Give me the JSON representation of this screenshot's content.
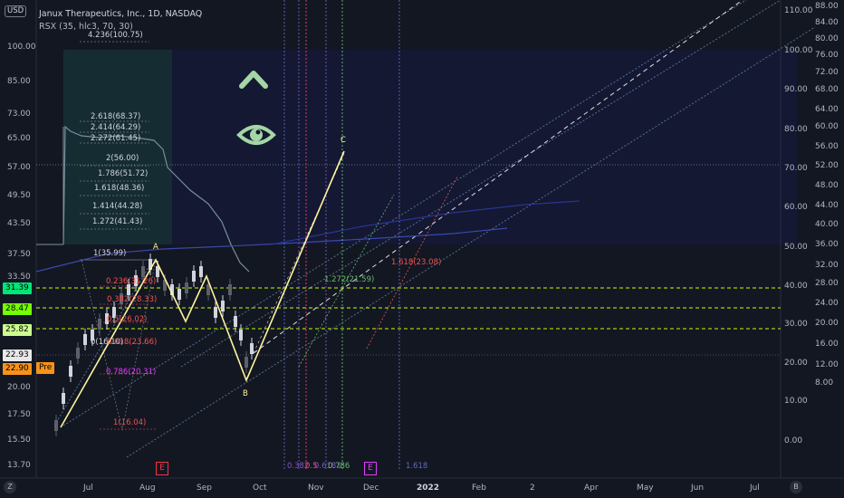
{
  "header": {
    "currency": "USD",
    "title": "Janux Therapeutics, Inc., 1D, NASDAQ",
    "indicator": "RSX (35, hlc3, 70, 30)"
  },
  "left_axis": [
    "100.00",
    "85.00",
    "73.00",
    "65.00",
    "57.00",
    "49.50",
    "43.50",
    "37.50",
    "33.50",
    "29.50",
    "20.00",
    "17.50",
    "15.50",
    "13.70"
  ],
  "left_badges": [
    {
      "label": "31.39",
      "color": "#00e676"
    },
    {
      "label": "28.47",
      "color": "#76ff03"
    },
    {
      "label": "25.82",
      "color": "#ccff90"
    },
    {
      "label": "22.93",
      "color": "#e8e8e8"
    },
    {
      "label": "22.90",
      "color": "#f7931a"
    }
  ],
  "pre_label": "Pre",
  "right_axis_inner": [
    "110.00",
    "100.00",
    "90.00",
    "80.00",
    "70.00",
    "60.00",
    "50.00",
    "40.00",
    "30.00",
    "20.00",
    "10.00",
    "0.00"
  ],
  "right_axis_outer": [
    "88.00",
    "84.00",
    "80.00",
    "76.00",
    "72.00",
    "68.00",
    "64.00",
    "60.00",
    "56.00",
    "52.00",
    "48.00",
    "44.00",
    "40.00",
    "36.00",
    "32.00",
    "28.00",
    "24.00",
    "20.00",
    "16.00",
    "12.00",
    "8.00"
  ],
  "x_axis": [
    "Jul",
    "Aug",
    "Sep",
    "Oct",
    "Nov",
    "Dec",
    "2022",
    "Feb",
    "2",
    "Apr",
    "May",
    "Jun",
    "Jul"
  ],
  "fib_levels_top": [
    {
      "text": "4.236(100.75)"
    },
    {
      "text": "2.618(68.37)"
    },
    {
      "text": "2.414(64.29)"
    },
    {
      "text": "2.272(61.45)"
    },
    {
      "text": "2(56.00)"
    },
    {
      "text": "1.786(51.72)"
    },
    {
      "text": "1.618(48.36)"
    },
    {
      "text": "1.414(44.28)"
    },
    {
      "text": "1.272(41.43)"
    },
    {
      "text": "1(35.99)"
    }
  ],
  "retracement_labels": [
    {
      "text": "0.236(31.26)"
    },
    {
      "text": "0.382(28.33)"
    },
    {
      "text": "0.5(26.02)"
    },
    {
      "text": "0(16.10)"
    },
    {
      "text": "0.618(23.66)"
    },
    {
      "text": "0.786(20.31)"
    },
    {
      "text": "1(16.04)"
    }
  ],
  "pattern_points": [
    "A",
    "B",
    "C"
  ],
  "projection_labels": [
    {
      "text": "1.272(21.59)",
      "color": "#66bb6a"
    },
    {
      "text": "1.618(23.08)",
      "color": "#ef5350"
    }
  ],
  "time_fib_labels": [
    {
      "text": "0.382",
      "color": "#7e57c2"
    },
    {
      "text": "0.5",
      "color": "#ec407a"
    },
    {
      "text": "0.618",
      "color": "#7e57c2"
    },
    {
      "text": "0.786",
      "color": "#66bb6a"
    },
    {
      "text": "1",
      "color": "#5c6bc0"
    },
    {
      "text": "1.618",
      "color": "#5c6bc0"
    }
  ],
  "events": [
    {
      "label": "E",
      "color": "#f23645"
    },
    {
      "label": "E",
      "color": "#e040fb"
    }
  ],
  "corner_buttons": [
    "Z",
    "B"
  ],
  "colors": {
    "background": "#131722",
    "pattern_line": "#fff59d",
    "guide_green": "#c6ff00",
    "ghost_icon": "#a5d6a7"
  },
  "icons": [
    "chevron-up-icon",
    "eye-icon"
  ]
}
